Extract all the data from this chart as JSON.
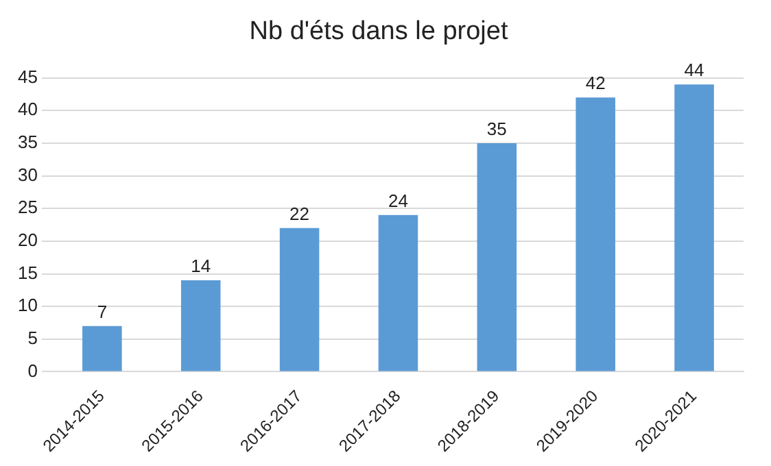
{
  "chart_data": {
    "type": "bar",
    "title": "Nb d'éts dans le projet",
    "categories": [
      "2014-2015",
      "2015-2016",
      "2016-2017",
      "2017-2018",
      "2018-2019",
      "2019-2020",
      "2020-2021"
    ],
    "values": [
      7,
      14,
      22,
      24,
      35,
      42,
      44
    ],
    "color": "#5b9bd5",
    "ylim": [
      0,
      45
    ],
    "yticks": [
      0,
      5,
      10,
      15,
      20,
      25,
      30,
      35,
      40,
      45
    ],
    "grid": "y",
    "data_labels": true,
    "legend": false
  }
}
